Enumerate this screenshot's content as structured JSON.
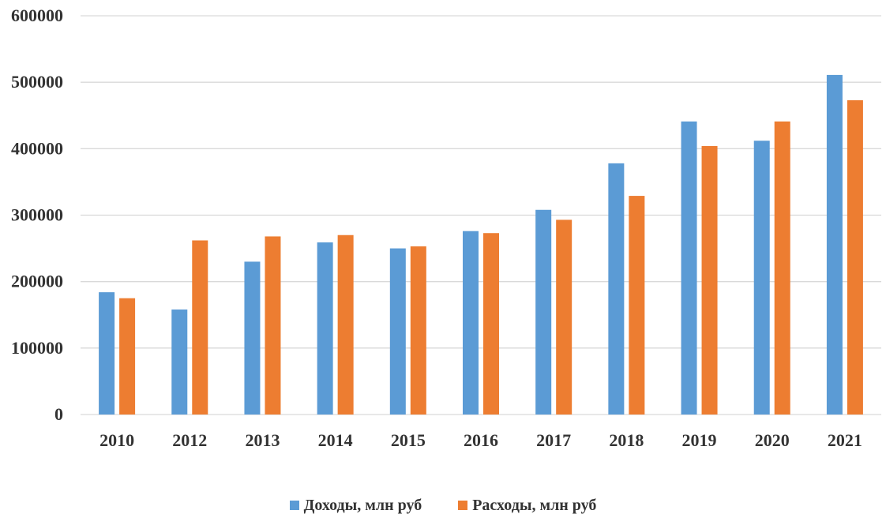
{
  "chart_data": {
    "type": "bar",
    "categories": [
      "2010",
      "2012",
      "2013",
      "2014",
      "2015",
      "2016",
      "2017",
      "2018",
      "2019",
      "2020",
      "2021"
    ],
    "series": [
      {
        "name": "Доходы, млн руб",
        "color": "#5b9bd5",
        "values": [
          184000,
          158000,
          230000,
          259000,
          250000,
          276000,
          308000,
          378000,
          441000,
          412000,
          511000
        ]
      },
      {
        "name": "Расходы, млн руб",
        "color": "#ed7d31",
        "values": [
          175000,
          262000,
          268000,
          270000,
          253000,
          273000,
          293000,
          329000,
          404000,
          441000,
          473000
        ]
      }
    ],
    "yticks": [
      "0",
      "100000",
      "200000",
      "300000",
      "400000",
      "500000",
      "600000"
    ],
    "ylim": [
      0,
      600000
    ],
    "grid": true,
    "legend_position": "bottom",
    "gridline_color": "#d9d9d9"
  }
}
